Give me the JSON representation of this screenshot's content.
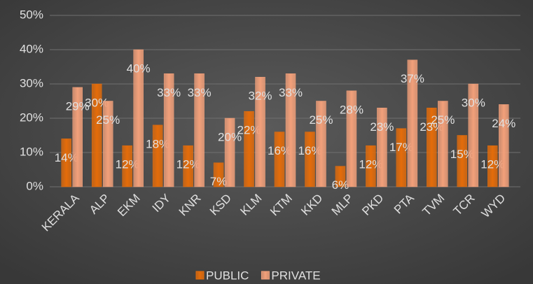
{
  "chart_data": {
    "type": "bar",
    "categories": [
      "KERALA",
      "ALP",
      "EKM",
      "IDY",
      "KNR",
      "KSD",
      "KLM",
      "KTM",
      "KKD",
      "MLP",
      "PKD",
      "PTA",
      "TVM",
      "TCR",
      "WYD"
    ],
    "series": [
      {
        "name": "PUBLIC",
        "color": "#e46c0a",
        "values": [
          14,
          30,
          12,
          18,
          12,
          7,
          22,
          16,
          16,
          6,
          12,
          17,
          23,
          15,
          12
        ],
        "value_labels": [
          "14%",
          "30%",
          "12%",
          "18%",
          "12%",
          "7%",
          "22%",
          "16%",
          "16%",
          "6%",
          "12%",
          "17%",
          "23%",
          "15%",
          "12%"
        ]
      },
      {
        "name": "PRIVATE",
        "color": "#f2a07a",
        "values": [
          29,
          25,
          40,
          33,
          33,
          20,
          32,
          33,
          25,
          28,
          23,
          37,
          25,
          30,
          24
        ],
        "value_labels": [
          "29%",
          "25%",
          "40%",
          "33%",
          "33%",
          "20%",
          "32%",
          "33%",
          "25%",
          "28%",
          "23%",
          "37%",
          "25%",
          "30%",
          "24%"
        ]
      }
    ],
    "ylim": [
      0,
      50
    ],
    "yticks": [
      {
        "value": 0,
        "label": "0%"
      },
      {
        "value": 10,
        "label": "10%"
      },
      {
        "value": 20,
        "label": "20%"
      },
      {
        "value": 30,
        "label": "30%"
      },
      {
        "value": 40,
        "label": "40%"
      },
      {
        "value": 50,
        "label": "50%"
      }
    ],
    "grid": true,
    "legend": "bottom"
  }
}
